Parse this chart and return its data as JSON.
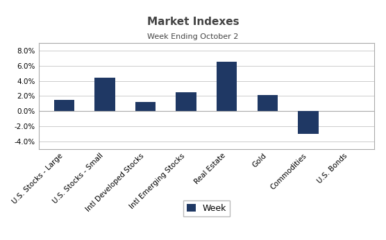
{
  "title": "Market Indexes",
  "subtitle": "Week Ending October 2",
  "categories": [
    "U.S. Stocks - Large",
    "U.S. Stocks - Small",
    "Intl Developed Stocks",
    "Intl Emerging Stocks",
    "Real Estate",
    "Gold",
    "Commodities",
    "U.S. Bonds"
  ],
  "values": [
    0.015,
    0.044,
    0.012,
    0.025,
    0.065,
    0.021,
    -0.03,
    0.0
  ],
  "bar_color": "#1F3864",
  "ylim": [
    -0.05,
    0.09
  ],
  "yticks": [
    -0.04,
    -0.02,
    0.0,
    0.02,
    0.04,
    0.06,
    0.08
  ],
  "legend_label": "Week",
  "background_color": "#ffffff",
  "grid_color": "#cccccc",
  "title_fontsize": 11,
  "subtitle_fontsize": 8,
  "tick_fontsize": 7.5,
  "legend_fontsize": 9
}
